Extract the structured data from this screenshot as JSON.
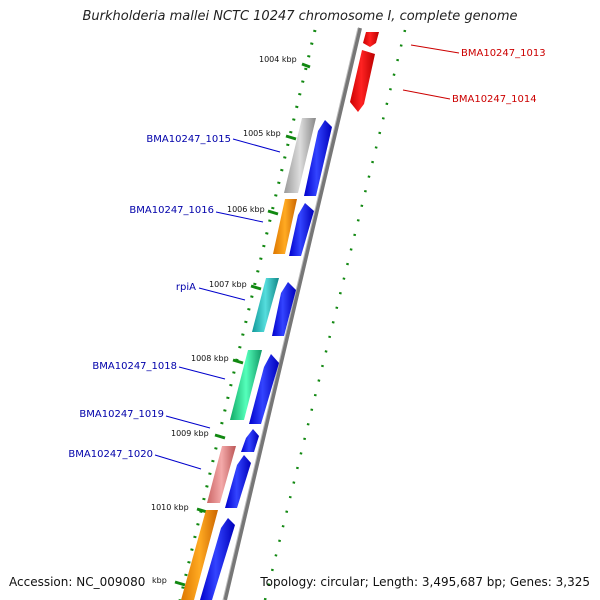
{
  "title": "Burkholderia mallei NCTC 10247 chromosome I, complete genome",
  "accession": "Accession: NC_009080",
  "topology": "Topology: circular; Length: 3,495,687 bp; Genes: 3,325",
  "ticks": [
    "1004 kbp",
    "1005 kbp",
    "1006 kbp",
    "1007 kbp",
    "1008 kbp",
    "1009 kbp",
    "1010 kbp",
    "kbp"
  ],
  "genes_forward": [
    "BMA10247_1015",
    "BMA10247_1016",
    "rpiA",
    "BMA10247_1018",
    "BMA10247_1019",
    "BMA10247_1020"
  ],
  "genes_reverse": [
    "BMA10247_1013",
    "BMA10247_1014"
  ],
  "colors": {
    "forward": "#0000ee",
    "reverse": "#ee0000",
    "backbone": "#888888",
    "gc": "#118811",
    "orange": "#ff9900",
    "gray": "#aaaaaa",
    "cyan": "#22bbcc",
    "green": "#22dd99",
    "pink": "#e88080"
  }
}
